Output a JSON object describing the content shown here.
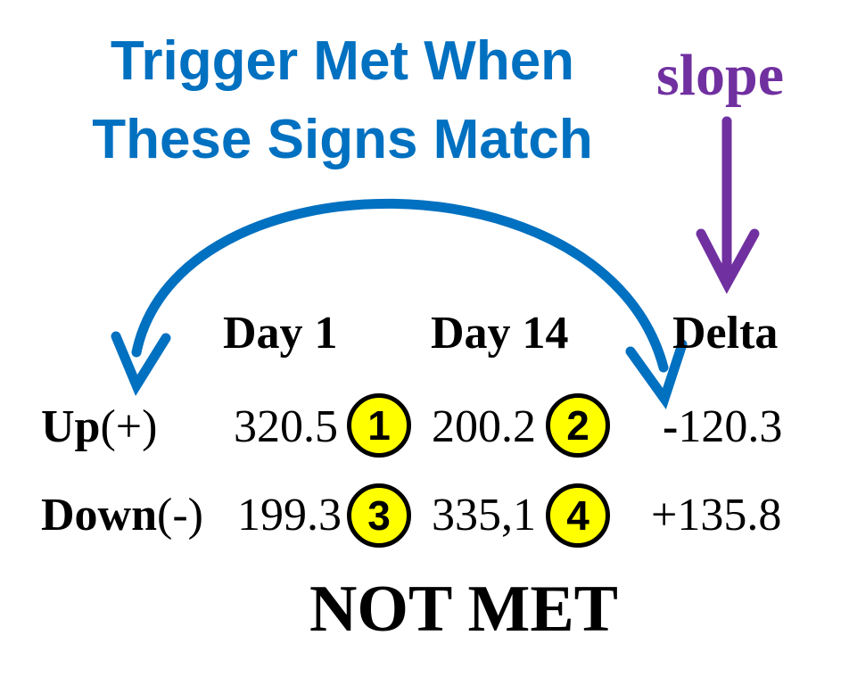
{
  "title": {
    "line1": "Trigger Met When",
    "line2": "These Signs Match",
    "color": "#0070C0"
  },
  "slope_label": {
    "text": "slope",
    "color": "#7030A0"
  },
  "columns": {
    "day1": "Day 1",
    "day14": "Day 14",
    "delta": "Delta"
  },
  "rows": [
    {
      "label_main": "Up",
      "label_sign": "(+)",
      "day1": "320.5",
      "badge1": "1",
      "day14": "200.2",
      "badge2": "2",
      "delta_sign": "-",
      "delta_value": "120.3"
    },
    {
      "label_main": "Down",
      "label_sign": "(-)",
      "day1": "199.3",
      "badge1": "3",
      "day14": "335,1",
      "badge2": "4",
      "delta_sign": "+",
      "delta_value": "135.8"
    }
  ],
  "badge_color": "#FFFF00",
  "status": "NOT MET"
}
